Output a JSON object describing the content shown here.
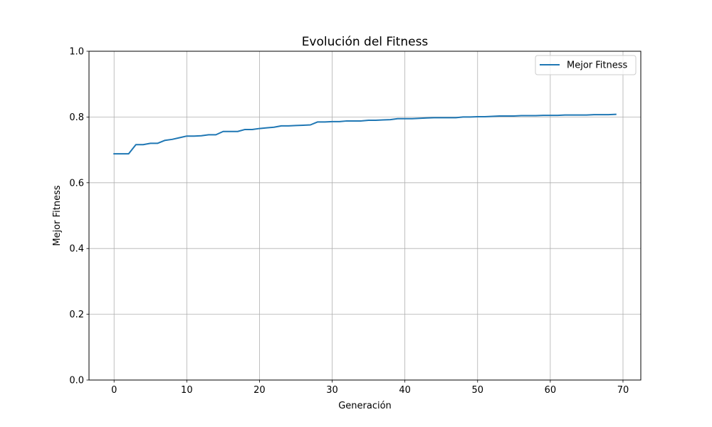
{
  "chart_data": {
    "type": "line",
    "title": "Evolución del Fitness",
    "xlabel": "Generación",
    "ylabel": "Mejor Fitness",
    "xlim": [
      -3.45,
      72.45
    ],
    "ylim": [
      0.0,
      1.0
    ],
    "xticks": [
      0,
      10,
      20,
      30,
      40,
      50,
      60,
      70
    ],
    "yticks": [
      0.0,
      0.2,
      0.4,
      0.6,
      0.8,
      1.0
    ],
    "xtick_labels": [
      "0",
      "10",
      "20",
      "30",
      "40",
      "50",
      "60",
      "70"
    ],
    "ytick_labels": [
      "0.0",
      "0.2",
      "0.4",
      "0.6",
      "0.8",
      "1.0"
    ],
    "grid": true,
    "legend": {
      "position": "top-right",
      "entries": [
        "Mejor Fitness"
      ]
    },
    "series": [
      {
        "name": "Mejor Fitness",
        "color": "#1f77b4",
        "x": [
          0,
          1,
          2,
          3,
          4,
          5,
          6,
          7,
          8,
          9,
          10,
          11,
          12,
          13,
          14,
          15,
          16,
          17,
          18,
          19,
          20,
          21,
          22,
          23,
          24,
          25,
          26,
          27,
          28,
          29,
          30,
          31,
          32,
          33,
          34,
          35,
          36,
          37,
          38,
          39,
          40,
          41,
          42,
          43,
          44,
          45,
          46,
          47,
          48,
          49,
          50,
          51,
          52,
          53,
          54,
          55,
          56,
          57,
          58,
          59,
          60,
          61,
          62,
          63,
          64,
          65,
          66,
          67,
          68,
          69
        ],
        "y": [
          0.688,
          0.688,
          0.688,
          0.716,
          0.716,
          0.72,
          0.72,
          0.729,
          0.732,
          0.737,
          0.742,
          0.742,
          0.743,
          0.746,
          0.746,
          0.756,
          0.756,
          0.756,
          0.762,
          0.762,
          0.765,
          0.767,
          0.769,
          0.773,
          0.773,
          0.774,
          0.775,
          0.776,
          0.785,
          0.785,
          0.786,
          0.786,
          0.788,
          0.788,
          0.788,
          0.79,
          0.79,
          0.791,
          0.792,
          0.795,
          0.795,
          0.795,
          0.796,
          0.797,
          0.798,
          0.798,
          0.798,
          0.798,
          0.8,
          0.8,
          0.801,
          0.801,
          0.802,
          0.803,
          0.803,
          0.803,
          0.804,
          0.804,
          0.804,
          0.805,
          0.805,
          0.805,
          0.806,
          0.806,
          0.806,
          0.806,
          0.807,
          0.807,
          0.807,
          0.808
        ]
      }
    ]
  }
}
